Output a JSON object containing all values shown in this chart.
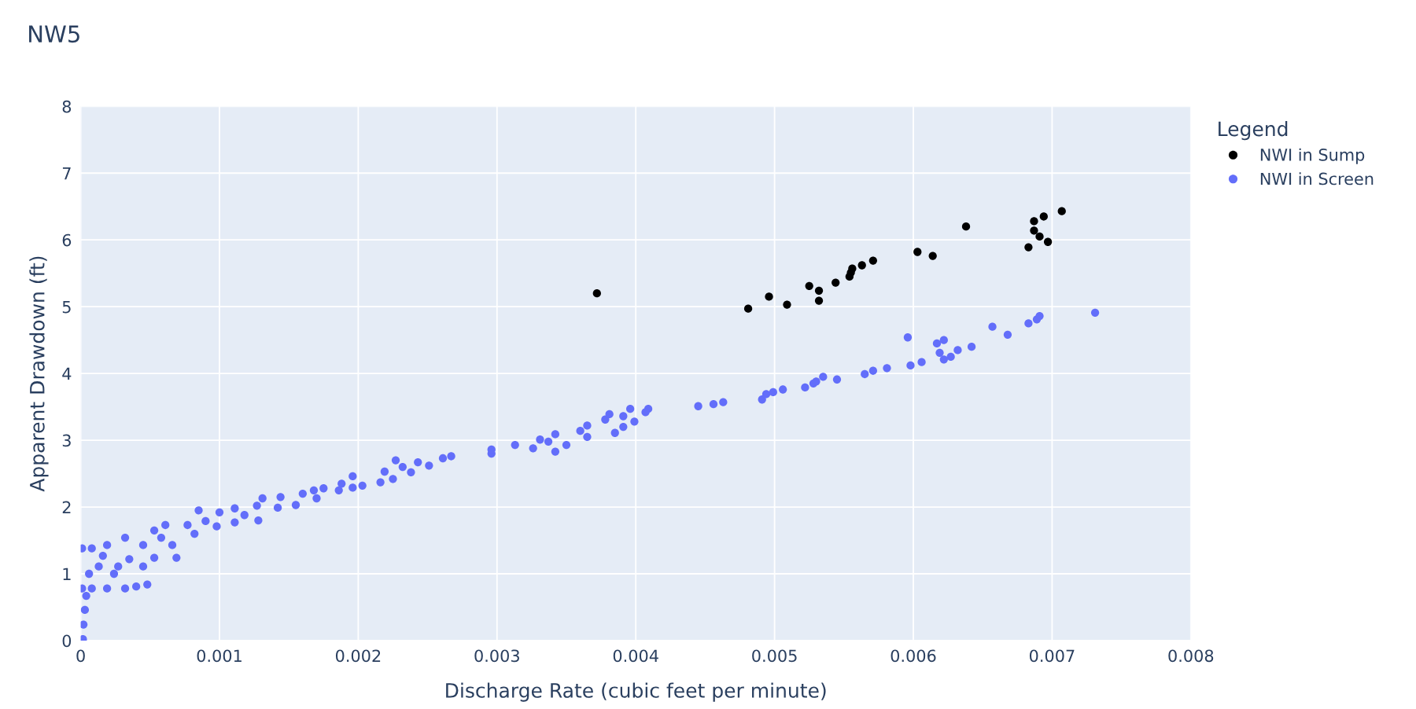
{
  "chart_data": {
    "type": "scatter",
    "title": "NW5",
    "xlabel": "Discharge Rate (cubic feet per minute)",
    "ylabel": "Apparent Drawdown (ft)",
    "legend_title": "Legend",
    "legend": "top right",
    "grid": true,
    "marker": "circle",
    "xlim": [
      0,
      0.008
    ],
    "xticks": [
      0,
      0.001,
      0.002,
      0.003,
      0.004,
      0.005,
      0.006,
      0.007,
      0.008
    ],
    "ylim": [
      0,
      8
    ],
    "yticks": [
      0,
      1,
      2,
      3,
      4,
      5,
      6,
      7,
      8
    ],
    "series": [
      {
        "name": "NWI in Sump",
        "color": "#000000",
        "x": [
          0.00372,
          0.00481,
          0.00496,
          0.00509,
          0.00525,
          0.00532,
          0.00532,
          0.00544,
          0.00554,
          0.00555,
          0.00556,
          0.00563,
          0.00571,
          0.00603,
          0.00614,
          0.00638,
          0.00683,
          0.00687,
          0.00687,
          0.00691,
          0.00694,
          0.00697,
          0.00707
        ],
        "values": [
          5.2,
          4.97,
          5.15,
          5.03,
          5.31,
          5.24,
          5.09,
          5.36,
          5.45,
          5.51,
          5.57,
          5.62,
          5.69,
          5.82,
          5.76,
          6.2,
          5.89,
          6.28,
          6.14,
          6.05,
          6.35,
          5.97,
          6.43
        ]
      },
      {
        "name": "NWI in Screen",
        "color": "#636efa",
        "x": [
          1.6e-05,
          2e-05,
          3e-05,
          4e-05,
          1e-05,
          1e-05,
          8e-05,
          0.00019,
          0.00032,
          0.00045,
          8e-05,
          0.00019,
          0.00032,
          0.0004,
          0.00048,
          0.00045,
          0.00053,
          0.00069,
          0.00013,
          0.00027,
          0.00035,
          0.00058,
          0.00061,
          0.00077,
          0.00082,
          0.00066,
          0.00024,
          6e-05,
          0.00016,
          0.00053,
          0.00085,
          0.0009,
          0.00098,
          0.001,
          0.00111,
          0.00111,
          0.00118,
          0.00128,
          0.00127,
          0.00131,
          0.00142,
          0.00144,
          0.00155,
          0.0016,
          0.00168,
          0.0017,
          0.00175,
          0.00186,
          0.00188,
          0.00196,
          0.00196,
          0.00203,
          0.00216,
          0.00219,
          0.00225,
          0.00227,
          0.00232,
          0.00238,
          0.00243,
          0.00251,
          0.00261,
          0.00267,
          0.00296,
          0.00296,
          0.00313,
          0.00326,
          0.00331,
          0.00337,
          0.00342,
          0.00342,
          0.0035,
          0.0036,
          0.00365,
          0.00365,
          0.00378,
          0.00381,
          0.00385,
          0.00391,
          0.00391,
          0.00396,
          0.00399,
          0.00409,
          0.00407,
          0.00445,
          0.00456,
          0.00463,
          0.00491,
          0.00494,
          0.00499,
          0.00506,
          0.00522,
          0.00528,
          0.0053,
          0.00535,
          0.00545,
          0.00565,
          0.00571,
          0.00581,
          0.00596,
          0.00598,
          0.00606,
          0.00617,
          0.00622,
          0.00619,
          0.00622,
          0.00627,
          0.00632,
          0.00642,
          0.00657,
          0.00668,
          0.00683,
          0.00689,
          0.00691,
          0.00731
        ],
        "values": [
          0.02,
          0.24,
          0.46,
          0.67,
          0.78,
          1.38,
          1.38,
          1.43,
          1.54,
          1.43,
          0.78,
          0.78,
          0.78,
          0.81,
          0.84,
          1.11,
          1.24,
          1.24,
          1.11,
          1.11,
          1.22,
          1.54,
          1.73,
          1.73,
          1.6,
          1.43,
          1.0,
          1.0,
          1.27,
          1.65,
          1.95,
          1.79,
          1.71,
          1.92,
          1.98,
          1.77,
          1.88,
          1.8,
          2.02,
          2.13,
          1.99,
          2.15,
          2.03,
          2.2,
          2.25,
          2.13,
          2.28,
          2.25,
          2.35,
          2.29,
          2.46,
          2.32,
          2.37,
          2.53,
          2.42,
          2.7,
          2.6,
          2.52,
          2.67,
          2.62,
          2.73,
          2.76,
          2.8,
          2.86,
          2.93,
          2.88,
          3.01,
          2.98,
          2.83,
          3.09,
          2.93,
          3.14,
          3.22,
          3.05,
          3.31,
          3.39,
          3.11,
          3.36,
          3.2,
          3.47,
          3.28,
          3.47,
          3.42,
          3.51,
          3.54,
          3.57,
          3.61,
          3.69,
          3.72,
          3.76,
          3.79,
          3.85,
          3.88,
          3.95,
          3.91,
          3.99,
          4.04,
          4.08,
          4.54,
          4.12,
          4.17,
          4.45,
          4.5,
          4.31,
          4.21,
          4.25,
          4.35,
          4.4,
          4.7,
          4.58,
          4.75,
          4.81,
          4.86,
          4.91
        ]
      }
    ]
  }
}
